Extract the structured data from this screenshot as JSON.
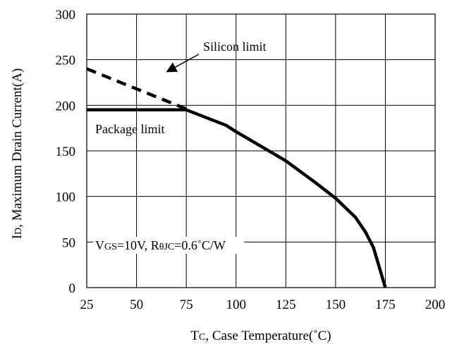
{
  "chart_data": {
    "type": "line",
    "title": "",
    "xlabel": {
      "main": "T",
      "sub": "C",
      "rest": ", Case Temperature(˚C)"
    },
    "ylabel": {
      "main": "I",
      "sub": "D",
      "rest": ", Maximum Drain Current(A)"
    },
    "xlim": [
      25,
      200
    ],
    "ylim": [
      0,
      300
    ],
    "xticks": [
      25,
      50,
      75,
      100,
      125,
      150,
      175,
      200
    ],
    "yticks": [
      0,
      50,
      100,
      150,
      200,
      250,
      300
    ],
    "grid": true,
    "series": [
      {
        "style": "solid",
        "points": [
          [
            75,
            195
          ],
          [
            95,
            178
          ],
          [
            100,
            171
          ],
          [
            125,
            139
          ],
          [
            140,
            115
          ],
          [
            150,
            98
          ],
          [
            160,
            77
          ],
          [
            165,
            61
          ],
          [
            169,
            44
          ],
          [
            175,
            0
          ]
        ]
      },
      {
        "style": "dashed",
        "points": [
          [
            25,
            240
          ],
          [
            75,
            196
          ]
        ]
      },
      {
        "style": "solid",
        "points": [
          [
            25,
            195
          ],
          [
            75,
            195
          ]
        ]
      }
    ],
    "annotations": {
      "silicon_limit": "Silicon limit",
      "package_limit": "Package limit",
      "conditions": {
        "v": "V",
        "v_sub": "GS",
        "v_rest": "=10V, R",
        "r_sub": "θJC",
        "r_rest": "=0.6˚C/W"
      }
    }
  }
}
